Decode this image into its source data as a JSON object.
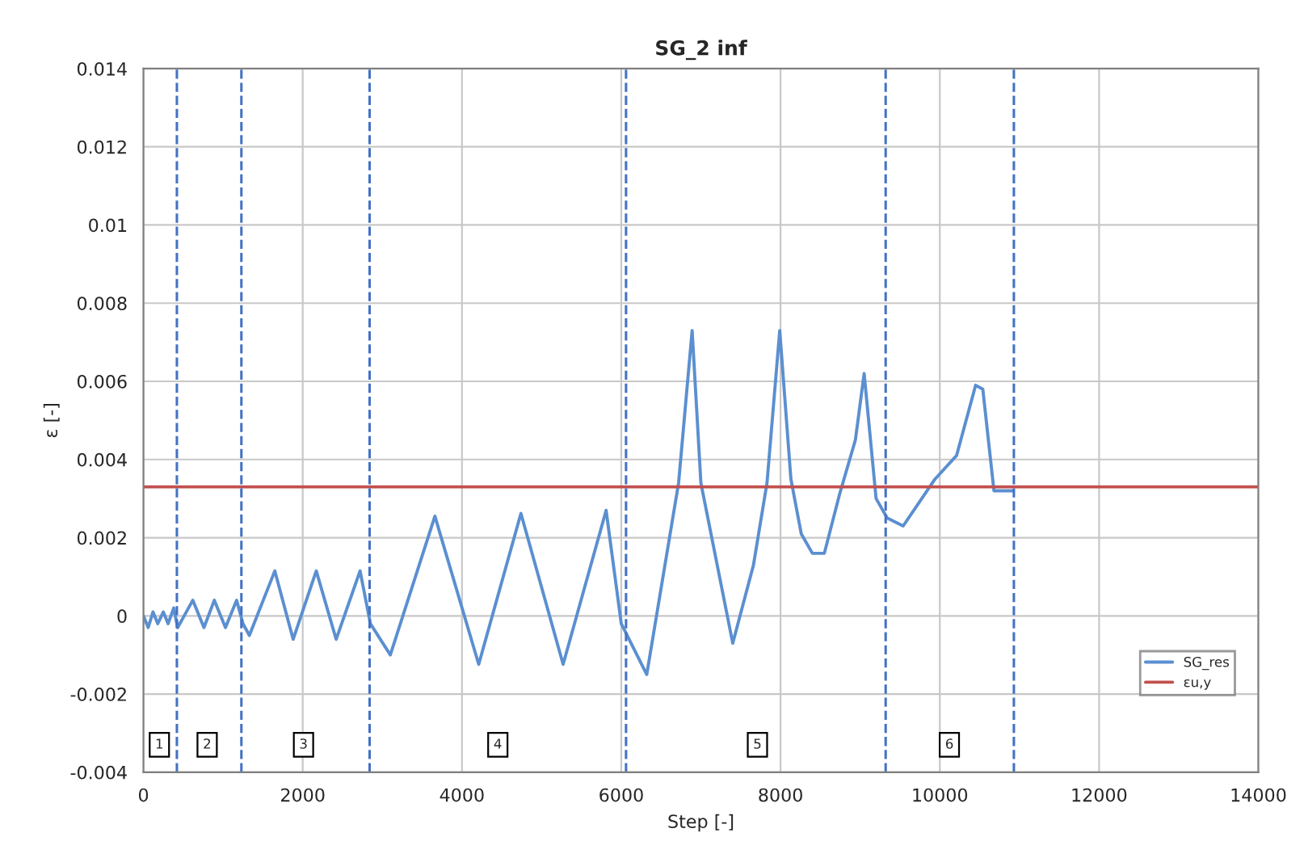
{
  "chart_data": {
    "type": "line",
    "title": "SG_2 inf",
    "xlabel": "Step [-]",
    "ylabel": "ε [-]",
    "xlim": [
      0,
      14000
    ],
    "xticks": [
      0,
      2000,
      4000,
      6000,
      8000,
      10000,
      12000,
      14000
    ],
    "ylim": [
      -0.004,
      0.014
    ],
    "yticks": [
      -0.004,
      -0.002,
      0,
      0.002,
      0.004,
      0.006,
      0.008,
      0.01,
      0.012,
      0.014
    ],
    "grid": true,
    "legend": "bottom right",
    "line_style": "solid",
    "series": [
      {
        "name": "SG_res",
        "color": "#5b8fd0",
        "x": [
          0,
          60,
          120,
          180,
          250,
          310,
          380,
          430,
          620,
          760,
          890,
          1030,
          1170,
          1250,
          1330,
          1650,
          1880,
          2170,
          2420,
          2720,
          2850,
          3100,
          3660,
          4210,
          4740,
          5270,
          5810,
          6000,
          6320,
          6720,
          6890,
          7000,
          7400,
          7660,
          7830,
          7990,
          8130,
          8260,
          8400,
          8550,
          8740,
          8940,
          9050,
          9200,
          9340,
          9540,
          9940,
          10210,
          10450,
          10540,
          10680,
          10920
        ],
        "values": [
          0,
          -0.0003,
          0.0001,
          -0.0002,
          0.0001,
          -0.0002,
          0.0002,
          -0.0003,
          0.0004,
          -0.0003,
          0.0004,
          -0.0003,
          0.0004,
          -0.0002,
          -0.0005,
          0.00115,
          -0.0006,
          0.00115,
          -0.0006,
          0.00115,
          -0.0002,
          -0.001,
          0.00255,
          -0.00124,
          0.00262,
          -0.00124,
          0.0027,
          -0.0002,
          -0.0015,
          0.0034,
          0.0073,
          0.0034,
          -0.0007,
          0.0013,
          0.0034,
          0.0073,
          0.0035,
          0.0021,
          0.0016,
          0.0016,
          0.0031,
          0.0045,
          0.0062,
          0.003,
          0.0025,
          0.0023,
          0.0035,
          0.0041,
          0.0059,
          0.0058,
          0.0032,
          0.0032
        ]
      },
      {
        "name": "εu,y",
        "color": "#c0504d",
        "x": [
          0,
          14000
        ],
        "values": [
          0.0033,
          0.0033
        ]
      }
    ],
    "ref_lines": [
      {
        "axis": "x",
        "value": 420,
        "color": "#4472c4",
        "line_style": "dashed"
      },
      {
        "axis": "x",
        "value": 1230,
        "color": "#4472c4",
        "line_style": "dashed"
      },
      {
        "axis": "x",
        "value": 2840,
        "color": "#4472c4",
        "line_style": "dashed"
      },
      {
        "axis": "x",
        "value": 6060,
        "color": "#4472c4",
        "line_style": "dashed"
      },
      {
        "axis": "x",
        "value": 9320,
        "color": "#4472c4",
        "line_style": "dashed"
      },
      {
        "axis": "x",
        "value": 10930,
        "color": "#4472c4",
        "line_style": "dashed"
      }
    ],
    "annotations": [
      {
        "text": "1",
        "x": 200,
        "y": -0.0033
      },
      {
        "text": "2",
        "x": 800,
        "y": -0.0033
      },
      {
        "text": "3",
        "x": 2010,
        "y": -0.0033
      },
      {
        "text": "4",
        "x": 4450,
        "y": -0.0033
      },
      {
        "text": "5",
        "x": 7710,
        "y": -0.0033
      },
      {
        "text": "6",
        "x": 10120,
        "y": -0.0033
      }
    ]
  }
}
